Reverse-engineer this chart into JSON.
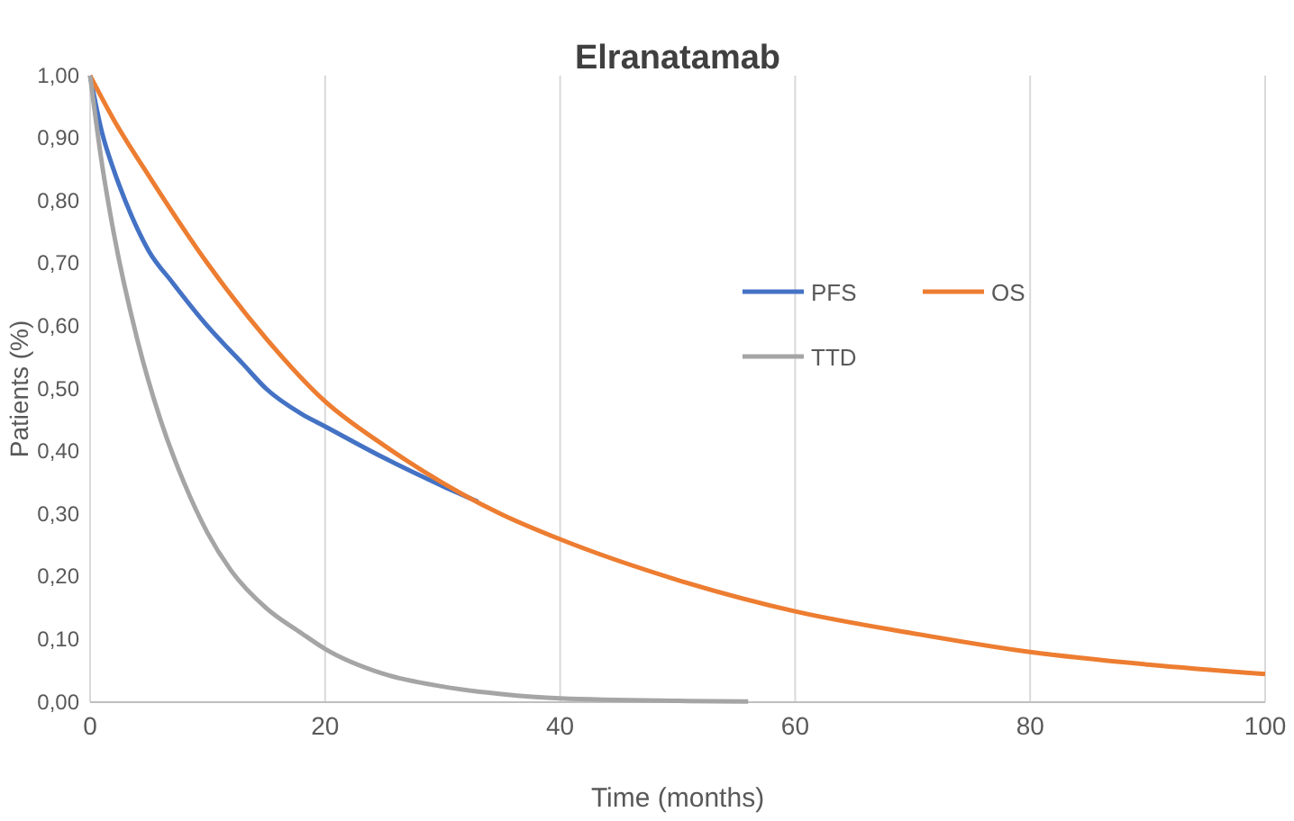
{
  "chart_data": {
    "type": "line",
    "title": "Elranatamab",
    "xlabel": "Time (months)",
    "ylabel": "Patients (%)",
    "xlim": [
      0,
      100
    ],
    "xticks": [
      0,
      20,
      40,
      60,
      80,
      100
    ],
    "ylim": [
      0,
      1
    ],
    "yticks": [
      {
        "value": 0,
        "label": "0,00"
      },
      {
        "value": 0.1,
        "label": "0,10"
      },
      {
        "value": 0.2,
        "label": "0,20"
      },
      {
        "value": 0.3,
        "label": "0,30"
      },
      {
        "value": 0.4,
        "label": "0,40"
      },
      {
        "value": 0.5,
        "label": "0,50"
      },
      {
        "value": 0.6,
        "label": "0,60"
      },
      {
        "value": 0.7,
        "label": "0,70"
      },
      {
        "value": 0.8,
        "label": "0,80"
      },
      {
        "value": 0.9,
        "label": "0,90"
      },
      {
        "value": 1,
        "label": "1,00"
      }
    ],
    "grid": "x",
    "legend": "top right",
    "marker": "none",
    "line_style": "solid",
    "series": [
      {
        "name": "PFS",
        "color": "#4472c4",
        "x": [
          0,
          1,
          2,
          3,
          5,
          7,
          10,
          13,
          15,
          18,
          20,
          25,
          30,
          33
        ],
        "values": [
          1,
          0.91,
          0.85,
          0.8,
          0.72,
          0.67,
          0.6,
          0.54,
          0.5,
          0.46,
          0.44,
          0.39,
          0.345,
          0.32
        ]
      },
      {
        "name": "OS",
        "color": "#ed7d31",
        "x": [
          0,
          2,
          5,
          10,
          15,
          20,
          25,
          30,
          35,
          40,
          50,
          60,
          70,
          80,
          90,
          100
        ],
        "values": [
          1,
          0.93,
          0.84,
          0.7,
          0.58,
          0.48,
          0.41,
          0.35,
          0.3,
          0.26,
          0.195,
          0.145,
          0.11,
          0.08,
          0.06,
          0.045
        ]
      },
      {
        "name": "TTD",
        "color": "#a5a5a5",
        "x": [
          0,
          1,
          2,
          4,
          6,
          8,
          10,
          12,
          15,
          18,
          20,
          25,
          30,
          35,
          40,
          50,
          56
        ],
        "values": [
          1,
          0.86,
          0.75,
          0.58,
          0.45,
          0.35,
          0.27,
          0.21,
          0.15,
          0.11,
          0.085,
          0.045,
          0.025,
          0.013,
          0.006,
          0.002,
          0.001
        ]
      }
    ]
  }
}
